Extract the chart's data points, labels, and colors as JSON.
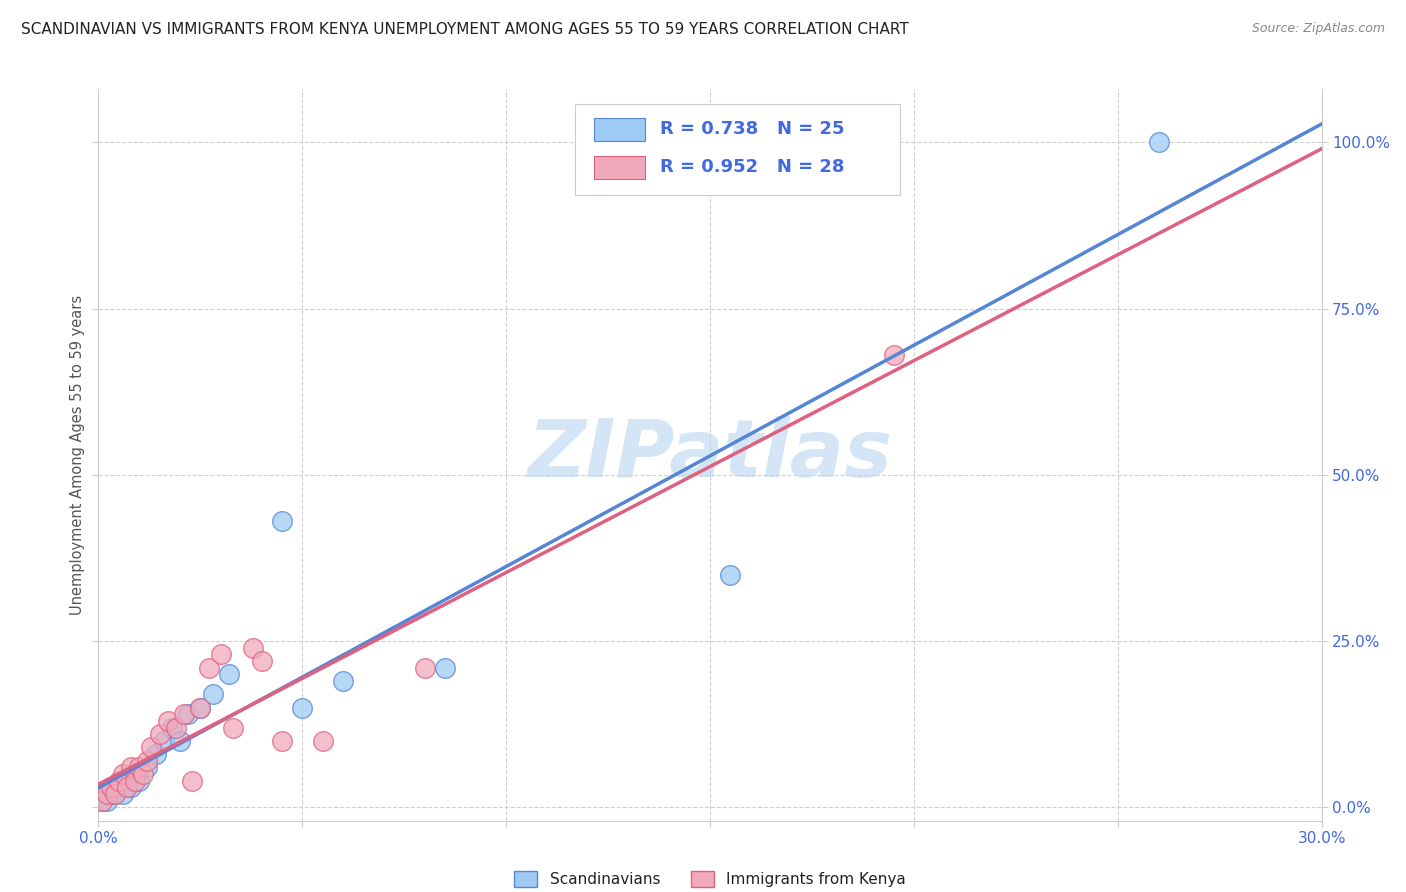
{
  "title": "SCANDINAVIAN VS IMMIGRANTS FROM KENYA UNEMPLOYMENT AMONG AGES 55 TO 59 YEARS CORRELATION CHART",
  "source": "Source: ZipAtlas.com",
  "ylabel": "Unemployment Among Ages 55 to 59 years",
  "xlim": [
    0.0,
    0.3
  ],
  "ylim": [
    -0.02,
    1.08
  ],
  "yticks": [
    0.0,
    0.25,
    0.5,
    0.75,
    1.0
  ],
  "ytick_labels": [
    "0.0%",
    "25.0%",
    "50.0%",
    "75.0%",
    "100.0%"
  ],
  "xticks": [
    0.0,
    0.05,
    0.1,
    0.15,
    0.2,
    0.25,
    0.3
  ],
  "xtick_labels": [
    "0.0%",
    "",
    "",
    "",
    "",
    "",
    "30.0%"
  ],
  "background_color": "#ffffff",
  "grid_color": "#d0d0d0",
  "watermark_text": "ZIPatlas",
  "watermark_color": "#b8d4f0",
  "scandinavians": {
    "color": "#9ecbf5",
    "label": "Scandinavians",
    "R": 0.738,
    "N": 25,
    "line_color": "#5585d5",
    "points_x": [
      0.001,
      0.002,
      0.003,
      0.004,
      0.005,
      0.006,
      0.007,
      0.008,
      0.009,
      0.01,
      0.012,
      0.014,
      0.016,
      0.018,
      0.02,
      0.022,
      0.025,
      0.028,
      0.032,
      0.045,
      0.05,
      0.06,
      0.085,
      0.155,
      0.26
    ],
    "points_y": [
      0.01,
      0.01,
      0.02,
      0.02,
      0.03,
      0.02,
      0.04,
      0.03,
      0.05,
      0.04,
      0.06,
      0.08,
      0.1,
      0.12,
      0.1,
      0.14,
      0.15,
      0.17,
      0.2,
      0.43,
      0.15,
      0.19,
      0.21,
      0.35,
      1.0
    ]
  },
  "kenya": {
    "color": "#f0aabb",
    "label": "Immigrants from Kenya",
    "R": 0.952,
    "N": 28,
    "line_color": "#e06080",
    "points_x": [
      0.001,
      0.002,
      0.003,
      0.004,
      0.005,
      0.006,
      0.007,
      0.008,
      0.009,
      0.01,
      0.011,
      0.012,
      0.013,
      0.015,
      0.017,
      0.019,
      0.021,
      0.023,
      0.025,
      0.027,
      0.03,
      0.033,
      0.038,
      0.04,
      0.045,
      0.055,
      0.08,
      0.195
    ],
    "points_y": [
      0.01,
      0.02,
      0.03,
      0.02,
      0.04,
      0.05,
      0.03,
      0.06,
      0.04,
      0.06,
      0.05,
      0.07,
      0.09,
      0.11,
      0.13,
      0.12,
      0.14,
      0.04,
      0.15,
      0.21,
      0.23,
      0.12,
      0.24,
      0.22,
      0.1,
      0.1,
      0.21,
      0.68
    ]
  }
}
